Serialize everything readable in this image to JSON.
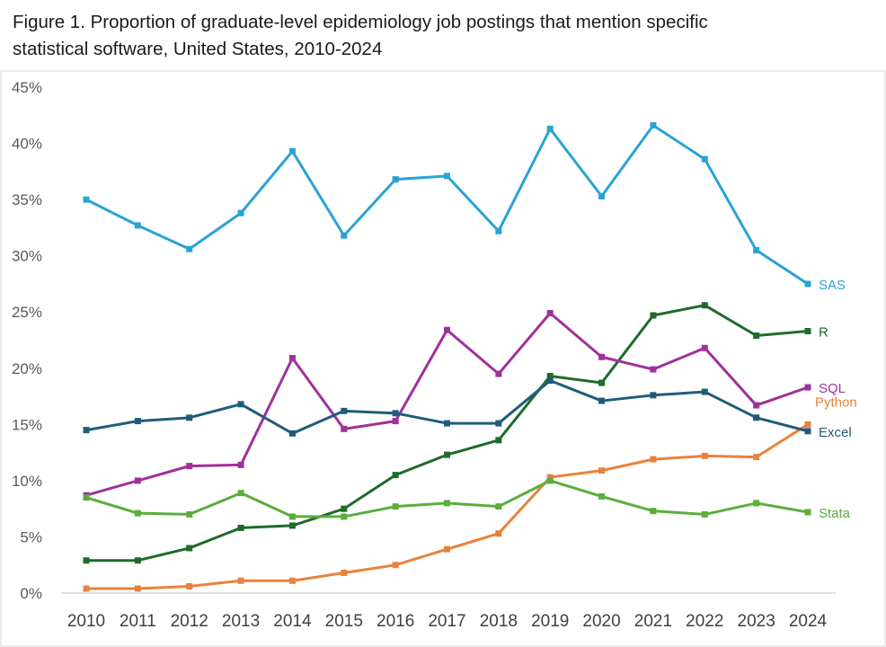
{
  "chart_data": {
    "type": "line",
    "title_line1": "Figure 1. Proportion of graduate-level epidemiology job postings that mention specific",
    "title_line2": "statistical software, United States, 2010-2024",
    "x": [
      "2010",
      "2011",
      "2012",
      "2013",
      "2014",
      "2015",
      "2016",
      "2017",
      "2018",
      "2019",
      "2020",
      "2021",
      "2022",
      "2023",
      "2024"
    ],
    "ylim": [
      0,
      45
    ],
    "yticks": [
      "0%",
      "5%",
      "10%",
      "15%",
      "20%",
      "25%",
      "30%",
      "35%",
      "40%",
      "45%"
    ],
    "grid": false,
    "legend": "inline-right",
    "series": [
      {
        "name": "SAS",
        "color": "#2AA3D3",
        "values": [
          35.0,
          32.7,
          30.6,
          33.8,
          39.3,
          31.8,
          36.8,
          37.1,
          32.2,
          41.3,
          35.3,
          41.6,
          38.6,
          30.5,
          27.5
        ]
      },
      {
        "name": "R",
        "color": "#1E6B2A",
        "values": [
          2.9,
          2.9,
          4.0,
          5.8,
          6.0,
          7.5,
          10.5,
          12.3,
          13.6,
          19.3,
          18.7,
          24.7,
          25.6,
          22.9,
          23.3
        ]
      },
      {
        "name": "SQL",
        "color": "#A0309A",
        "values": [
          8.7,
          10.0,
          11.3,
          11.4,
          20.9,
          14.6,
          15.3,
          23.4,
          19.5,
          24.9,
          21.0,
          19.9,
          21.8,
          16.7,
          18.3
        ]
      },
      {
        "name": "Python",
        "color": "#E8823C",
        "values": [
          0.4,
          0.4,
          0.6,
          1.1,
          1.1,
          1.8,
          2.5,
          3.9,
          5.3,
          10.3,
          10.9,
          11.9,
          12.2,
          12.1,
          15.0
        ]
      },
      {
        "name": "Excel",
        "color": "#1F5C7A",
        "values": [
          14.5,
          15.3,
          15.6,
          16.8,
          14.2,
          16.2,
          16.0,
          15.1,
          15.1,
          18.9,
          17.1,
          17.6,
          17.9,
          15.6,
          14.4
        ]
      },
      {
        "name": "Stata",
        "color": "#5AAE3C",
        "values": [
          8.5,
          7.1,
          7.0,
          8.9,
          6.8,
          6.8,
          7.7,
          8.0,
          7.7,
          10.0,
          8.6,
          7.3,
          7.0,
          8.0,
          7.2
        ]
      }
    ]
  }
}
